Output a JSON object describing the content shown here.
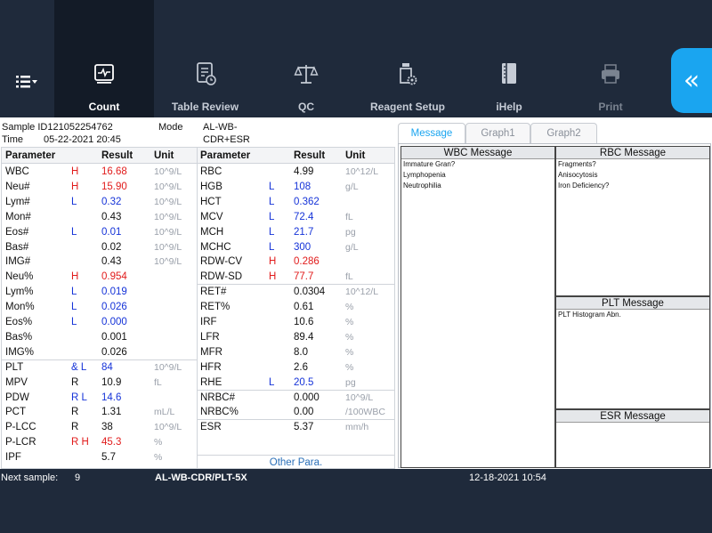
{
  "nav": {
    "items": [
      {
        "label": "Count",
        "active": true
      },
      {
        "label": "Table Review"
      },
      {
        "label": "QC"
      },
      {
        "label": "Reagent Setup"
      },
      {
        "label": "iHelp"
      },
      {
        "label": "Print",
        "disabled": true
      }
    ],
    "menu_icon": "list-menu-icon",
    "back_icon": "double-chevron-left-icon",
    "back_glyph": "«"
  },
  "sample": {
    "id_label": "Sample ID",
    "id_value": "121052254762",
    "mode_label": "Mode",
    "mode_value": "AL-WB-CDR+ESR",
    "time_label": "Time",
    "time_value": "05-22-2021 20:45"
  },
  "table": {
    "headers": {
      "param": "Parameter",
      "result": "Result",
      "unit": "Unit"
    },
    "left": [
      {
        "p": "WBC",
        "f": "H",
        "r": "16.68",
        "u": "10^9/L",
        "fc": "H"
      },
      {
        "p": "Neu#",
        "f": "H",
        "r": "15.90",
        "u": "10^9/L",
        "fc": "H"
      },
      {
        "p": "Lym#",
        "f": "L",
        "r": "0.32",
        "u": "10^9/L",
        "fc": "L"
      },
      {
        "p": "Mon#",
        "f": "",
        "r": "0.43",
        "u": "10^9/L",
        "fc": ""
      },
      {
        "p": "Eos#",
        "f": "L",
        "r": "0.01",
        "u": "10^9/L",
        "fc": "L"
      },
      {
        "p": "Bas#",
        "f": "",
        "r": "0.02",
        "u": "10^9/L",
        "fc": ""
      },
      {
        "p": "IMG#",
        "f": "",
        "r": "0.43",
        "u": "10^9/L",
        "fc": ""
      },
      {
        "p": "Neu%",
        "f": "H",
        "r": "0.954",
        "u": "",
        "fc": "H"
      },
      {
        "p": "Lym%",
        "f": "L",
        "r": "0.019",
        "u": "",
        "fc": "L"
      },
      {
        "p": "Mon%",
        "f": "L",
        "r": "0.026",
        "u": "",
        "fc": "L"
      },
      {
        "p": "Eos%",
        "f": "L",
        "r": "0.000",
        "u": "",
        "fc": "L"
      },
      {
        "p": "Bas%",
        "f": "",
        "r": "0.001",
        "u": "",
        "fc": ""
      },
      {
        "p": "IMG%",
        "f": "",
        "r": "0.026",
        "u": "",
        "fc": ""
      },
      {
        "p": "PLT",
        "f": "& L",
        "r": "84",
        "u": "10^9/L",
        "fc": "L"
      },
      {
        "p": "MPV",
        "f": "R",
        "r": "10.9",
        "u": "fL",
        "fc": ""
      },
      {
        "p": "PDW",
        "f": "R L",
        "r": "14.6",
        "u": "",
        "fc": "L"
      },
      {
        "p": "PCT",
        "f": "R",
        "r": "1.31",
        "u": "mL/L",
        "fc": ""
      },
      {
        "p": "P-LCC",
        "f": "R",
        "r": "38",
        "u": "10^9/L",
        "fc": ""
      },
      {
        "p": "P-LCR",
        "f": "R H",
        "r": "45.3",
        "u": "%",
        "fc": "H"
      },
      {
        "p": "IPF",
        "f": "",
        "r": "5.7",
        "u": "%",
        "fc": ""
      }
    ],
    "right": [
      {
        "p": "RBC",
        "f": "",
        "r": "4.99",
        "u": "10^12/L",
        "fc": ""
      },
      {
        "p": "HGB",
        "f": "L",
        "r": "108",
        "u": "g/L",
        "fc": "L"
      },
      {
        "p": "HCT",
        "f": "L",
        "r": "0.362",
        "u": "",
        "fc": "L"
      },
      {
        "p": "MCV",
        "f": "L",
        "r": "72.4",
        "u": "fL",
        "fc": "L"
      },
      {
        "p": "MCH",
        "f": "L",
        "r": "21.7",
        "u": "pg",
        "fc": "L"
      },
      {
        "p": "MCHC",
        "f": "L",
        "r": "300",
        "u": "g/L",
        "fc": "L"
      },
      {
        "p": "RDW-CV",
        "f": "H",
        "r": "0.286",
        "u": "",
        "fc": "H"
      },
      {
        "p": "RDW-SD",
        "f": "H",
        "r": "77.7",
        "u": "fL",
        "fc": "H"
      },
      {
        "p": "RET#",
        "f": "",
        "r": "0.0304",
        "u": "10^12/L",
        "fc": ""
      },
      {
        "p": "RET%",
        "f": "",
        "r": "0.61",
        "u": "%",
        "fc": ""
      },
      {
        "p": "IRF",
        "f": "",
        "r": "10.6",
        "u": "%",
        "fc": ""
      },
      {
        "p": "LFR",
        "f": "",
        "r": "89.4",
        "u": "%",
        "fc": ""
      },
      {
        "p": "MFR",
        "f": "",
        "r": "8.0",
        "u": "%",
        "fc": ""
      },
      {
        "p": "HFR",
        "f": "",
        "r": "2.6",
        "u": "%",
        "fc": ""
      },
      {
        "p": "RHE",
        "f": "L",
        "r": "20.5",
        "u": "pg",
        "fc": "L"
      },
      {
        "p": "NRBC#",
        "f": "",
        "r": "0.000",
        "u": "10^9/L",
        "fc": ""
      },
      {
        "p": "NRBC%",
        "f": "",
        "r": "0.00",
        "u": "/100WBC",
        "fc": ""
      },
      {
        "p": "ESR",
        "f": "",
        "r": "5.37",
        "u": "mm/h",
        "fc": ""
      }
    ],
    "other_para": "Other Para."
  },
  "tabs": [
    {
      "label": "Message",
      "active": true
    },
    {
      "label": "Graph1"
    },
    {
      "label": "Graph2"
    }
  ],
  "messages": {
    "wbc": {
      "title": "WBC Message",
      "lines": [
        "Immature Gran?",
        "Lymphopenia",
        "Neutrophilia"
      ]
    },
    "rbc": {
      "title": "RBC Message",
      "lines": [
        "Fragments?",
        "Anisocytosis",
        "Iron Deficiency?"
      ]
    },
    "plt": {
      "title": "PLT Message",
      "lines": [
        "PLT Histogram Abn."
      ]
    },
    "esr": {
      "title": "ESR Message",
      "lines": []
    }
  },
  "status": {
    "next_label": "Next sample:",
    "next_value": "9",
    "mode": "AL-WB-CDR/PLT-5X",
    "datetime": "12-18-2021 10:54"
  },
  "colors": {
    "high": "#e11b1b",
    "low": "#1533d8",
    "accent": "#1aa5f0"
  }
}
